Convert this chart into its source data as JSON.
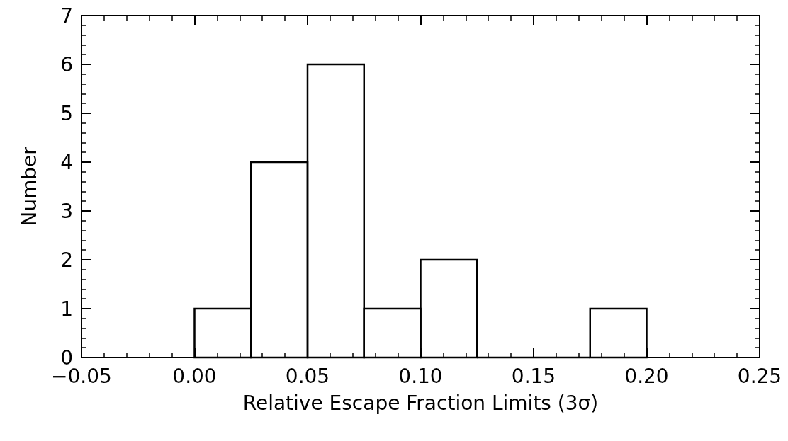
{
  "chart_data": {
    "type": "histogram",
    "xlabel": "Relative Escape Fraction Limits (3σ)",
    "ylabel": "Number",
    "bins": [
      0,
      0.025,
      0.05,
      0.075,
      0.1,
      0.125,
      0.15,
      0.175,
      0.2
    ],
    "values": [
      1,
      4,
      6,
      1,
      2,
      0,
      0,
      1
    ],
    "color": "#000000",
    "xlim": [
      -0.05,
      0.25
    ],
    "xticks": [
      {
        "value": -0.05,
        "label": "−0.05"
      },
      {
        "value": 0,
        "label": "0.00"
      },
      {
        "value": 0.05,
        "label": "0.05"
      },
      {
        "value": 0.1,
        "label": "0.10"
      },
      {
        "value": 0.15,
        "label": "0.15"
      },
      {
        "value": 0.2,
        "label": "0.20"
      },
      {
        "value": 0.25,
        "label": "0.25"
      }
    ],
    "ylim": [
      0,
      7
    ],
    "yticks": [
      0,
      1,
      2,
      3,
      4,
      5,
      6,
      7
    ]
  }
}
